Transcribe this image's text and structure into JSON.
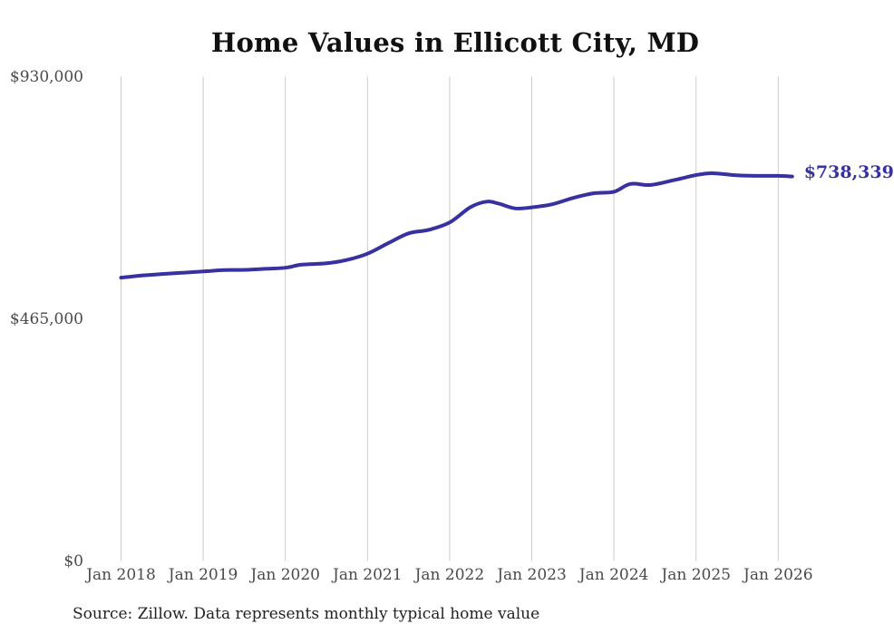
{
  "title": "Home Values in Ellicott City, MD",
  "source_note": "Source: Zillow. Data represents monthly typical home value",
  "colors": {
    "line": "#3732a0",
    "latest_value_label": "#3732a0",
    "gridline": "#cccccc",
    "title_text": "#111111",
    "axis_text": "#4a4a4a",
    "source_text": "#222222",
    "background": "#ffffff"
  },
  "chart_data": {
    "type": "line",
    "title": "Home Values in Ellicott City, MD",
    "xlabel": "",
    "ylabel": "",
    "ylim": [
      0,
      930000
    ],
    "xlim": [
      2018.0,
      2026.17
    ],
    "grid": "vertical-only",
    "legend": "none",
    "y_ticks": [
      {
        "value": 930000,
        "label": "$930,000"
      },
      {
        "value": 465000,
        "label": "$465,000"
      },
      {
        "value": 0,
        "label": "$0"
      }
    ],
    "x_ticks": [
      {
        "x": 2018.0,
        "label": "Jan 2018"
      },
      {
        "x": 2019.0,
        "label": "Jan 2019"
      },
      {
        "x": 2020.0,
        "label": "Jan 2020"
      },
      {
        "x": 2021.0,
        "label": "Jan 2021"
      },
      {
        "x": 2022.0,
        "label": "Jan 2022"
      },
      {
        "x": 2023.0,
        "label": "Jan 2023"
      },
      {
        "x": 2024.0,
        "label": "Jan 2024"
      },
      {
        "x": 2025.0,
        "label": "Jan 2025"
      },
      {
        "x": 2026.0,
        "label": "Jan 2026"
      }
    ],
    "series": [
      {
        "name": "Monthly typical home value",
        "latest_value": 738339,
        "latest_value_label": "$738,339",
        "points": [
          [
            2018.0,
            544000
          ],
          [
            2018.25,
            548000
          ],
          [
            2018.5,
            551000
          ],
          [
            2018.75,
            553500
          ],
          [
            2019.0,
            556000
          ],
          [
            2019.25,
            558500
          ],
          [
            2019.5,
            559000
          ],
          [
            2019.75,
            561000
          ],
          [
            2020.0,
            563000
          ],
          [
            2020.2,
            569000
          ],
          [
            2020.5,
            571500
          ],
          [
            2020.75,
            578000
          ],
          [
            2021.0,
            590000
          ],
          [
            2021.25,
            610000
          ],
          [
            2021.5,
            629000
          ],
          [
            2021.75,
            636000
          ],
          [
            2022.0,
            650000
          ],
          [
            2022.25,
            679000
          ],
          [
            2022.45,
            690000
          ],
          [
            2022.6,
            686000
          ],
          [
            2022.8,
            677000
          ],
          [
            2023.0,
            679000
          ],
          [
            2023.25,
            685000
          ],
          [
            2023.5,
            697000
          ],
          [
            2023.75,
            706000
          ],
          [
            2024.0,
            709000
          ],
          [
            2024.2,
            724000
          ],
          [
            2024.45,
            722000
          ],
          [
            2024.75,
            732000
          ],
          [
            2025.0,
            741000
          ],
          [
            2025.2,
            744500
          ],
          [
            2025.5,
            740500
          ],
          [
            2025.75,
            739500
          ],
          [
            2026.0,
            739500
          ],
          [
            2026.17,
            738339
          ]
        ]
      }
    ]
  }
}
